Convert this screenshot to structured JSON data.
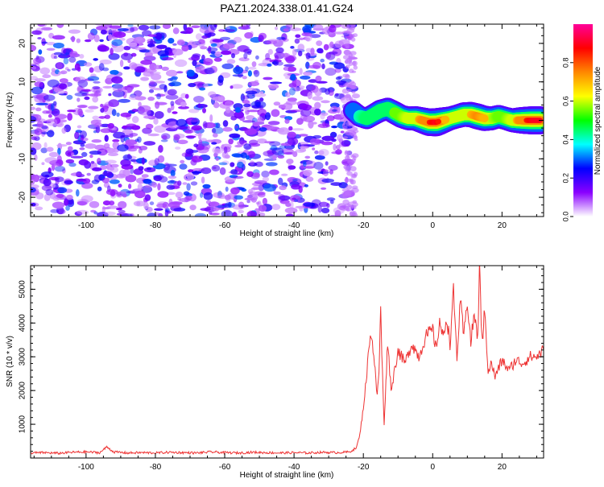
{
  "title": "PAZ1.2024.338.01.41.G24",
  "chart_data": [
    {
      "type": "heatmap",
      "xlabel": "Height of straight line (km)",
      "ylabel": "Frequency (Hz)",
      "xlim": [
        -116,
        32
      ],
      "ylim": [
        -25,
        25
      ],
      "xticks": [
        -100,
        -80,
        -60,
        -40,
        -20,
        0,
        20
      ],
      "yticks": [
        -20,
        -10,
        0,
        10,
        20
      ],
      "colorbar": {
        "label": "Normalized spectral amplitude",
        "range": [
          0,
          1
        ],
        "ticks": [
          "0.0",
          "0.2",
          "0.4",
          "0.6",
          "0.8"
        ],
        "tick_values": [
          0,
          0.2,
          0.4,
          0.6,
          0.8
        ],
        "colors": [
          "#ffffff",
          "#8a00ff",
          "#0000ff",
          "#00ffff",
          "#00ff00",
          "#ffff00",
          "#ff8800",
          "#ff0000",
          "#ff0099"
        ]
      },
      "noise_region": {
        "x": [
          -116,
          -23
        ],
        "freq": [
          -25,
          25
        ],
        "amplitude_range": [
          0.05,
          0.3
        ]
      },
      "signal_trace": {
        "x": [
          -23,
          -21,
          -19,
          -17,
          -15,
          -13,
          -11,
          -9,
          -7,
          -5,
          -3,
          -1,
          1,
          3,
          5,
          7,
          9,
          11,
          13,
          15,
          17,
          19,
          21,
          23,
          25,
          27,
          29,
          31
        ],
        "freq": [
          2.5,
          1.0,
          0.5,
          1.5,
          2.5,
          3.0,
          2.0,
          1.0,
          0.5,
          0.5,
          0.0,
          -0.5,
          -0.5,
          0.0,
          0.5,
          1.0,
          1.5,
          1.5,
          1.0,
          0.5,
          0.5,
          1.0,
          0.5,
          0.0,
          0.0,
          0.0,
          0.0,
          0.0
        ],
        "amplitude": [
          0.35,
          0.4,
          0.45,
          0.45,
          0.5,
          0.5,
          0.55,
          0.55,
          0.6,
          0.65,
          0.75,
          0.85,
          0.9,
          0.75,
          0.6,
          0.6,
          0.65,
          0.7,
          0.75,
          0.7,
          0.6,
          0.55,
          0.55,
          0.6,
          0.75,
          0.85,
          0.9,
          0.9
        ]
      }
    },
    {
      "type": "line",
      "xlabel": "Height of straight line (km)",
      "ylabel": "SNR (10 * v/v)",
      "xlim": [
        -116,
        32
      ],
      "ylim": [
        0,
        5700
      ],
      "xticks": [
        -100,
        -80,
        -60,
        -40,
        -20,
        0,
        20
      ],
      "yticks": [
        1000,
        2000,
        3000,
        4000,
        5000
      ],
      "line_color": "#ee3333",
      "series": [
        {
          "x": [
            -116,
            -112,
            -108,
            -104,
            -100,
            -96,
            -94,
            -92,
            -88,
            -84,
            -80,
            -76,
            -72,
            -68,
            -64,
            -60,
            -56,
            -52,
            -48,
            -44,
            -40,
            -36,
            -32,
            -28,
            -24,
            -22,
            -21,
            -20,
            -19,
            -18,
            -17,
            -16,
            -15.5,
            -15,
            -14.5,
            -14,
            -13.5,
            -13,
            -12,
            -11,
            -10,
            -8,
            -6,
            -4,
            -2,
            0,
            1,
            2,
            3,
            4,
            5,
            6,
            7,
            8,
            9,
            10,
            11,
            12,
            13,
            13.5,
            14,
            14.5,
            15,
            16,
            17,
            18,
            20,
            22,
            24,
            26,
            28,
            30,
            32
          ],
          "values": [
            150,
            160,
            140,
            170,
            180,
            160,
            330,
            180,
            150,
            160,
            150,
            170,
            160,
            150,
            180,
            160,
            150,
            170,
            160,
            150,
            160,
            150,
            170,
            160,
            180,
            300,
            700,
            1500,
            2500,
            3800,
            3100,
            1800,
            2600,
            4400,
            2500,
            1000,
            2200,
            3500,
            2000,
            2600,
            3200,
            2800,
            3400,
            3000,
            3600,
            3800,
            3200,
            4100,
            3500,
            4200,
            3400,
            4900,
            3000,
            4600,
            3600,
            4700,
            3400,
            4300,
            3500,
            5700,
            4000,
            3600,
            4400,
            2600,
            2800,
            2400,
            2900,
            2600,
            2900,
            2800,
            3000,
            3000,
            3200
          ]
        }
      ]
    }
  ]
}
